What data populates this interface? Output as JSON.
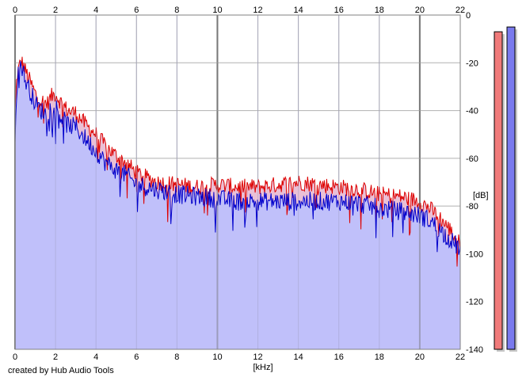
{
  "footer": {
    "credit": "created by Hub Audio Tools"
  },
  "chart_data": {
    "type": "line",
    "title": "",
    "xlabel": "[kHz]",
    "ylabel": "[dB]",
    "xlim": [
      0,
      22
    ],
    "ylim": [
      -140,
      0
    ],
    "x_ticks": [
      0,
      2,
      4,
      6,
      8,
      10,
      12,
      14,
      16,
      18,
      20,
      22
    ],
    "y_ticks": [
      0,
      -20,
      -40,
      -60,
      -80,
      -100,
      -120,
      -140
    ],
    "grid": true,
    "series": [
      {
        "color": "#dd0000",
        "x": [
          0,
          0.1,
          0.3,
          0.5,
          0.8,
          1.0,
          1.3,
          1.6,
          1.8,
          2.0,
          2.3,
          2.6,
          3.0,
          3.5,
          4.0,
          4.5,
          5.0,
          5.5,
          6.0,
          7.0,
          8.0,
          9.0,
          10.0,
          11.0,
          12.0,
          13.0,
          14.0,
          15.0,
          16.0,
          17.0,
          18.0,
          19.0,
          20.0,
          20.5,
          21.0,
          21.5,
          22.0
        ],
        "values": [
          -40,
          -25,
          -19,
          -23,
          -29,
          -33,
          -36,
          -37,
          -34,
          -33,
          -37,
          -40,
          -41,
          -46,
          -50,
          -55,
          -59,
          -62,
          -66,
          -70,
          -71,
          -72,
          -71,
          -72,
          -72,
          -71,
          -70,
          -71,
          -72,
          -73,
          -75,
          -76,
          -78,
          -81,
          -85,
          -90,
          -96
        ]
      },
      {
        "color": "#0000cc",
        "x": [
          0,
          0.1,
          0.3,
          0.5,
          0.8,
          1.0,
          1.3,
          1.6,
          1.8,
          2.0,
          2.3,
          2.6,
          3.0,
          3.5,
          4.0,
          4.5,
          5.0,
          5.5,
          6.0,
          7.0,
          8.0,
          9.0,
          10.0,
          11.0,
          12.0,
          13.0,
          14.0,
          15.0,
          16.0,
          17.0,
          18.0,
          19.0,
          20.0,
          20.5,
          21.0,
          21.5,
          22.0
        ],
        "values": [
          -50,
          -27,
          -20,
          -27,
          -33,
          -37,
          -40,
          -42,
          -37,
          -38,
          -43,
          -46,
          -47,
          -52,
          -57,
          -62,
          -65,
          -67,
          -71,
          -73,
          -75,
          -76,
          -77,
          -78,
          -78,
          -78,
          -78,
          -78,
          -78,
          -79,
          -81,
          -82,
          -84,
          -86,
          -90,
          -94,
          -98
        ]
      }
    ],
    "level_meters": [
      {
        "color": "#f07a7a",
        "value": -7
      },
      {
        "color": "#7a7aee",
        "value": -5
      }
    ]
  }
}
